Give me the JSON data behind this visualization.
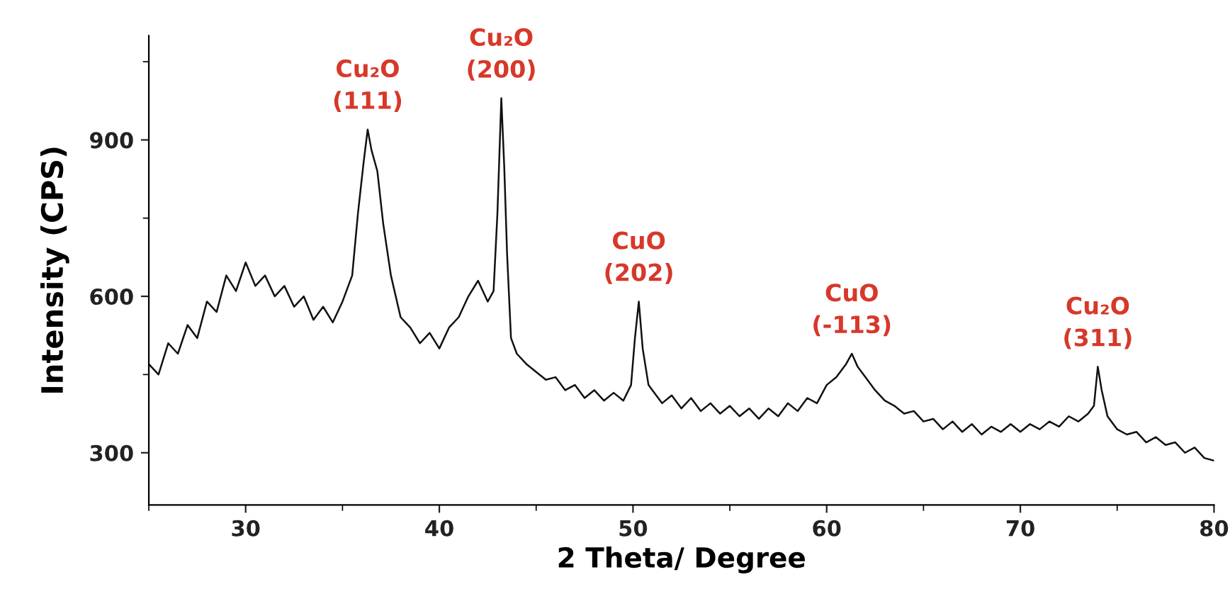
{
  "chart_data": {
    "type": "line",
    "xlabel": "2 Theta/ Degree",
    "ylabel": "Intensity (CPS)",
    "xlim": [
      25,
      80
    ],
    "xticks": [
      30,
      40,
      50,
      60,
      70,
      80
    ],
    "ylim": [
      200,
      1100
    ],
    "yticks": [
      300,
      600,
      900
    ],
    "grid": false,
    "legend": false,
    "marker": "none",
    "line_style": "solid",
    "annotations": [
      {
        "text": "Cu₂O\n(111)",
        "x": 36.3,
        "y": 920
      },
      {
        "text": "Cu₂O\n(200)",
        "x": 43.2,
        "y": 980
      },
      {
        "text": "CuO\n(202)",
        "x": 50.3,
        "y": 590
      },
      {
        "text": "CuO\n(-113)",
        "x": 61.3,
        "y": 490
      },
      {
        "text": "Cu₂O\n(311)",
        "x": 74.0,
        "y": 465
      }
    ],
    "series": [
      {
        "color": "#111111",
        "x": [
          25,
          25.5,
          26,
          26.5,
          27,
          27.5,
          28,
          28.5,
          29,
          29.5,
          30,
          30.5,
          31,
          31.5,
          32,
          32.5,
          33,
          33.5,
          34,
          34.5,
          35,
          35.5,
          35.8,
          36.1,
          36.3,
          36.5,
          36.8,
          37.1,
          37.5,
          38,
          38.5,
          39,
          39.5,
          40,
          40.5,
          41,
          41.5,
          42,
          42.5,
          42.8,
          43.0,
          43.2,
          43.35,
          43.5,
          43.7,
          44,
          44.5,
          45,
          45.5,
          46,
          46.5,
          47,
          47.5,
          48,
          48.5,
          49,
          49.5,
          49.9,
          50.1,
          50.3,
          50.5,
          50.8,
          51,
          51.5,
          52,
          52.5,
          53,
          53.5,
          54,
          54.5,
          55,
          55.5,
          56,
          56.5,
          57,
          57.5,
          58,
          58.5,
          59,
          59.5,
          60,
          60.5,
          61,
          61.3,
          61.6,
          62,
          62.5,
          63,
          63.5,
          64,
          64.5,
          65,
          65.5,
          66,
          66.5,
          67,
          67.5,
          68,
          68.5,
          69,
          69.5,
          70,
          70.5,
          71,
          71.5,
          72,
          72.5,
          73,
          73.5,
          73.8,
          74.0,
          74.2,
          74.5,
          75,
          75.5,
          76,
          76.5,
          77,
          77.5,
          78,
          78.5,
          79,
          79.5,
          80
        ],
        "values": [
          470,
          450,
          510,
          490,
          545,
          520,
          590,
          570,
          640,
          610,
          665,
          620,
          640,
          600,
          620,
          580,
          600,
          555,
          580,
          550,
          590,
          640,
          760,
          860,
          920,
          880,
          840,
          740,
          640,
          560,
          540,
          510,
          530,
          500,
          540,
          560,
          600,
          630,
          590,
          610,
          760,
          980,
          850,
          680,
          520,
          490,
          470,
          455,
          440,
          445,
          420,
          430,
          405,
          420,
          400,
          415,
          400,
          430,
          520,
          590,
          500,
          430,
          420,
          395,
          410,
          385,
          405,
          380,
          395,
          375,
          390,
          370,
          385,
          365,
          385,
          370,
          395,
          380,
          405,
          395,
          430,
          445,
          470,
          490,
          465,
          445,
          420,
          400,
          390,
          375,
          380,
          360,
          365,
          345,
          360,
          340,
          355,
          335,
          350,
          340,
          355,
          340,
          355,
          345,
          360,
          350,
          370,
          360,
          375,
          390,
          465,
          420,
          370,
          345,
          335,
          340,
          320,
          330,
          315,
          320,
          300,
          310,
          290,
          285
        ]
      }
    ]
  }
}
